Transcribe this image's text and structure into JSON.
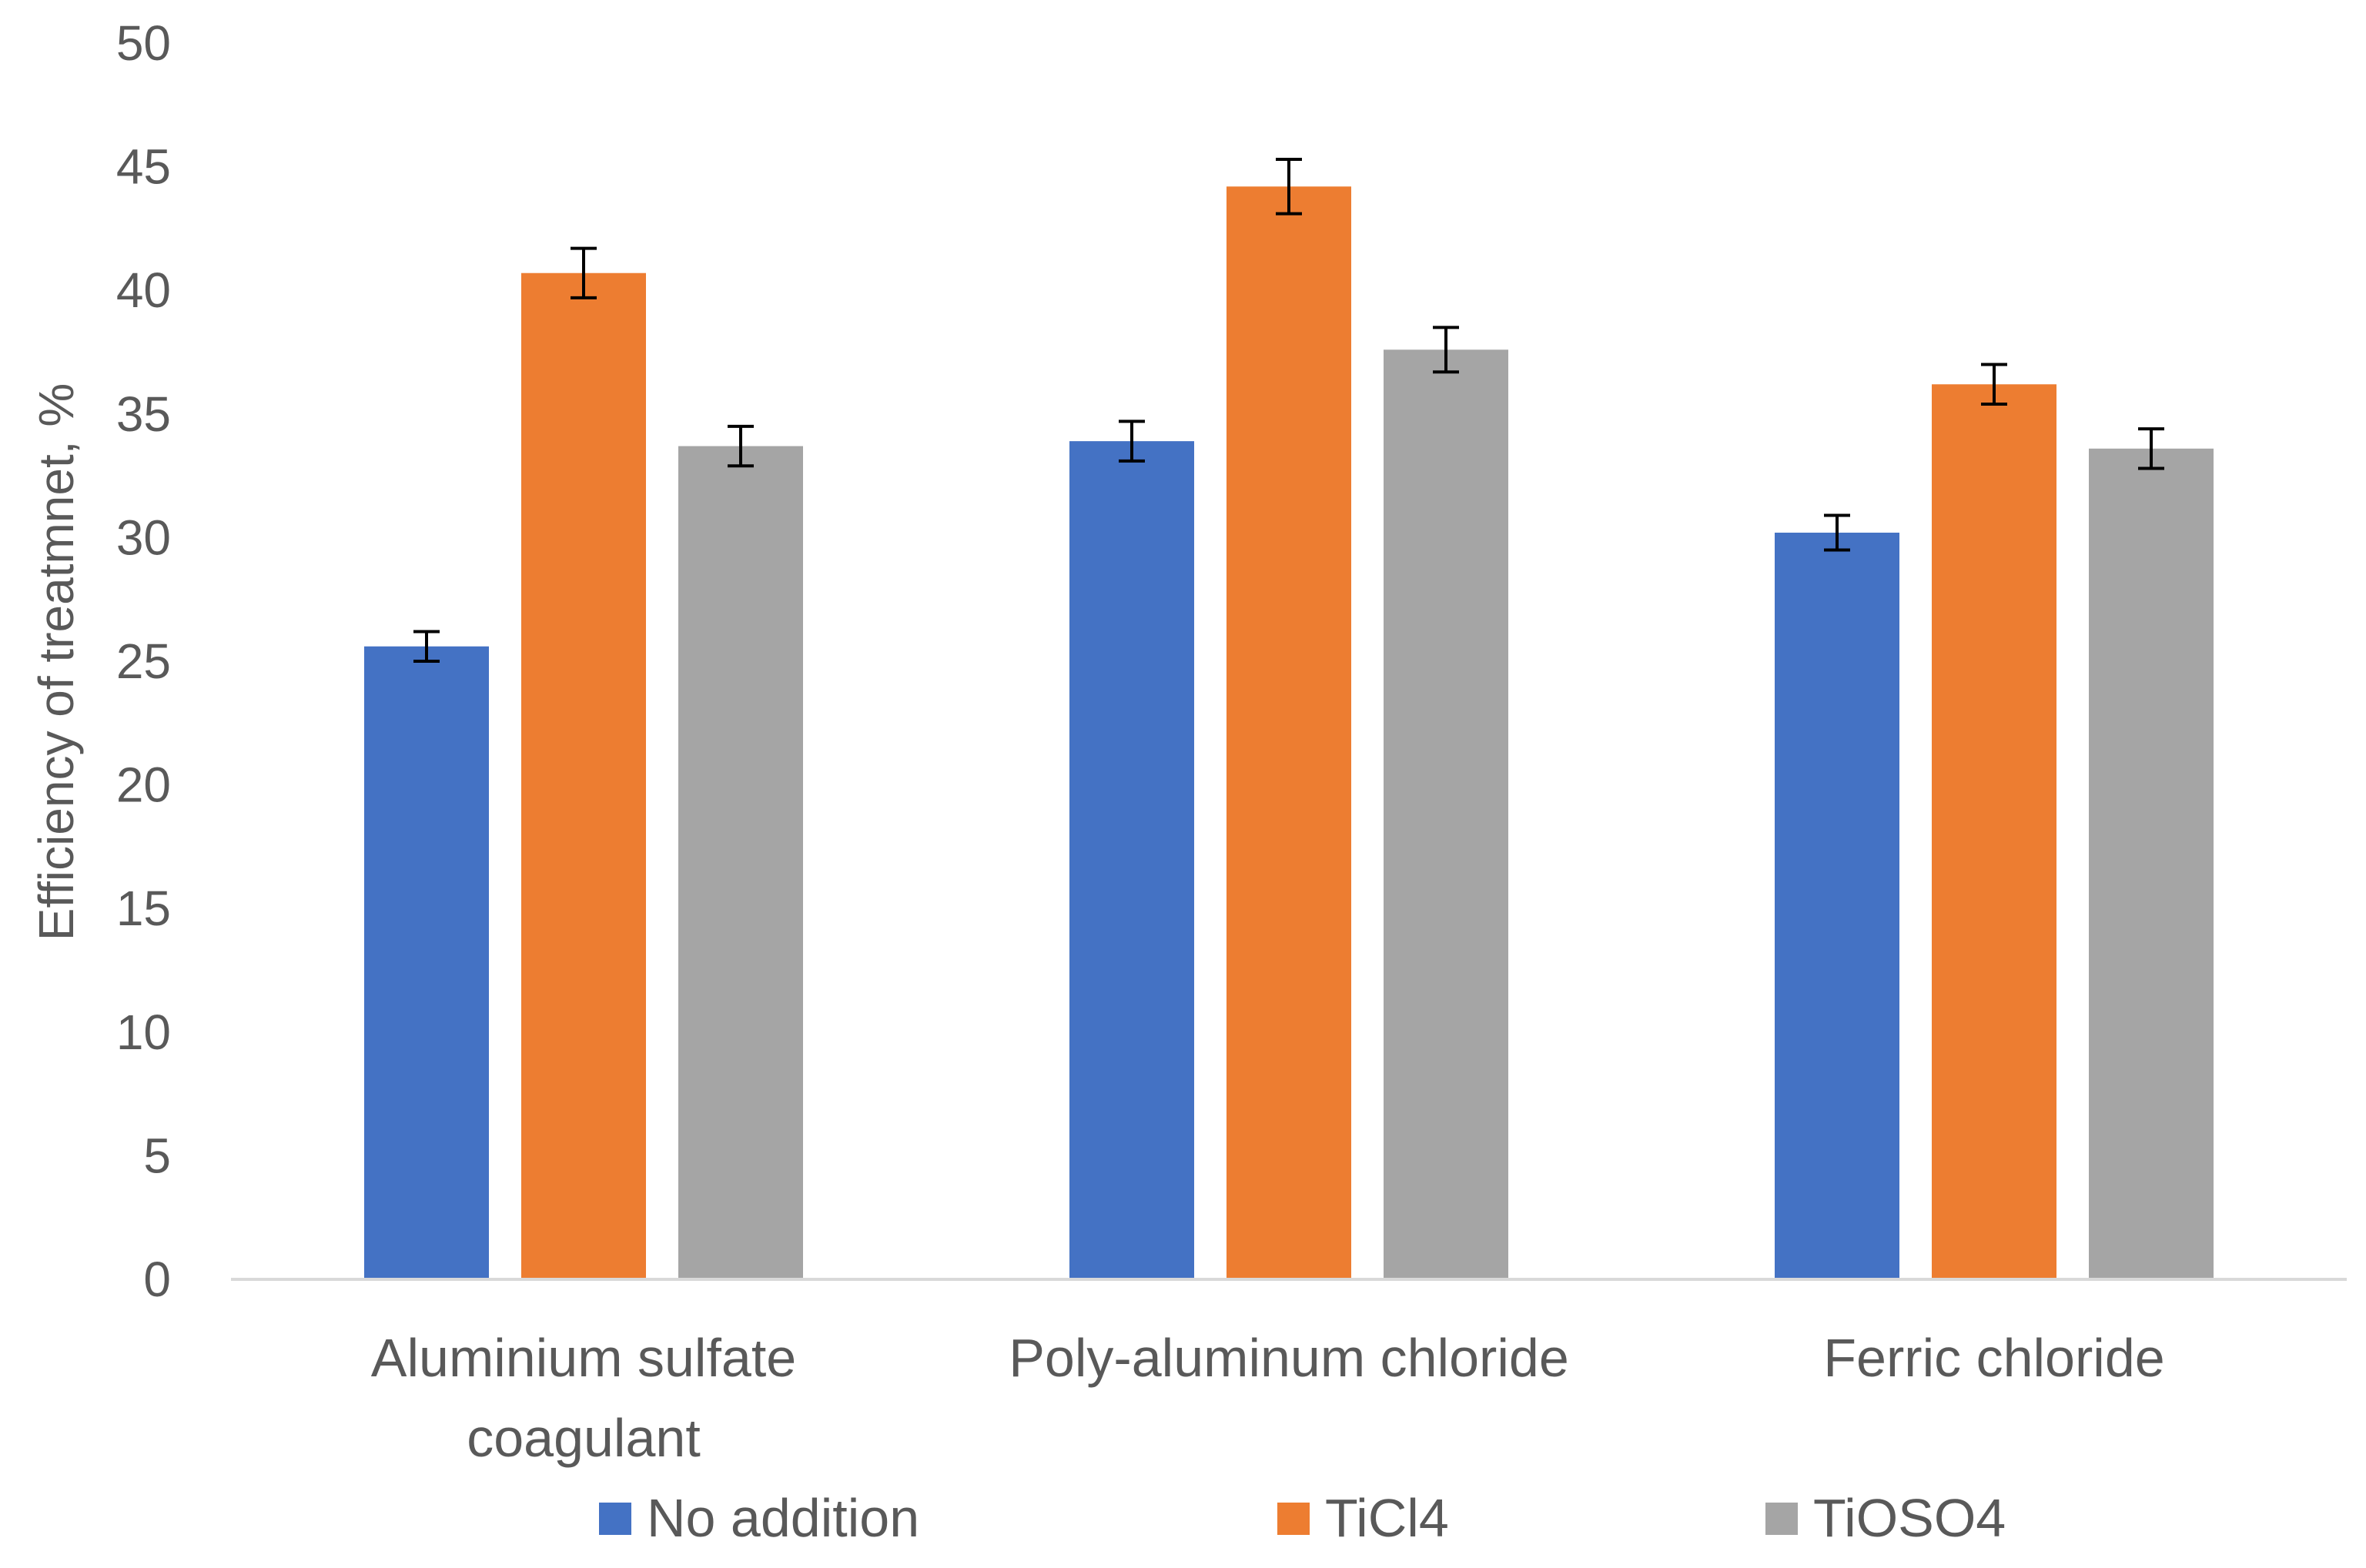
{
  "chart_data": {
    "type": "bar",
    "title": "",
    "xlabel": "",
    "ylabel": "Efficiency of treatmnet, %",
    "ylim": [
      0,
      50
    ],
    "yticks": [
      0,
      5,
      10,
      15,
      20,
      25,
      30,
      35,
      40,
      45,
      50
    ],
    "grid": false,
    "legend_position": "bottom",
    "categories": [
      [
        "Aluminium sulfate",
        "coagulant"
      ],
      [
        "Poly-aluminum chloride"
      ],
      [
        "Ferric chloride"
      ]
    ],
    "series": [
      {
        "name": "No addition",
        "color": "#4472C4",
        "values": [
          25.6,
          33.9,
          30.2
        ],
        "errors": [
          0.6,
          0.8,
          0.7
        ]
      },
      {
        "name": "TiCl4",
        "color": "#ED7D31",
        "values": [
          40.7,
          44.2,
          36.2
        ],
        "errors": [
          1.0,
          1.1,
          0.8
        ]
      },
      {
        "name": "TiOSO4",
        "color": "#A5A5A5",
        "values": [
          33.7,
          37.6,
          33.6
        ],
        "errors": [
          0.8,
          0.9,
          0.8
        ]
      }
    ]
  }
}
